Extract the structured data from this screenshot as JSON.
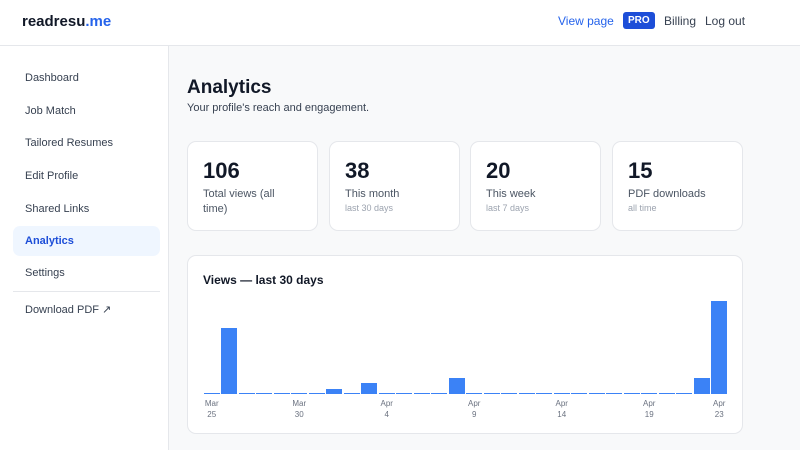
{
  "header": {
    "logo": {
      "name": "readresu",
      "tld": ".me"
    },
    "nav": [
      "View page",
      "PRO",
      "Billing",
      "Log out"
    ]
  },
  "sidebar": {
    "items": [
      "Dashboard",
      "Job Match",
      "Tailored Resumes",
      "Edit Profile",
      "Shared Links",
      "Analytics",
      "Settings"
    ],
    "download": "Download PDF ↗"
  },
  "page": {
    "title": "Analytics",
    "subtitle": "Your profile's reach and engagement."
  },
  "stats": [
    {
      "value": 106,
      "label": "Total views (all time)"
    },
    {
      "value": 38,
      "label": "This month",
      "note": "last 30 days"
    },
    {
      "value": 20,
      "label": "This week",
      "note": "last 7 days"
    },
    {
      "value": 15,
      "label": "PDF downloads",
      "note": "all time"
    }
  ],
  "chart_data": {
    "type": "bar",
    "title": "Views — last 30 days",
    "categories": [
      "Mar 25",
      null,
      null,
      null,
      null,
      "Mar 30",
      null,
      null,
      null,
      null,
      "Apr 4",
      null,
      null,
      null,
      null,
      "Apr 9",
      null,
      null,
      null,
      null,
      "Apr 14",
      null,
      null,
      null,
      null,
      "Apr 19",
      null,
      null,
      null,
      "Apr 23"
    ],
    "values": [
      0,
      12,
      0,
      0,
      0,
      0,
      0,
      1,
      0,
      2,
      0,
      0,
      0,
      0,
      3,
      0,
      0,
      0,
      0,
      0,
      0,
      0,
      0,
      0,
      0,
      0,
      0,
      0,
      3,
      17
    ],
    "color": "#3b82f6"
  }
}
